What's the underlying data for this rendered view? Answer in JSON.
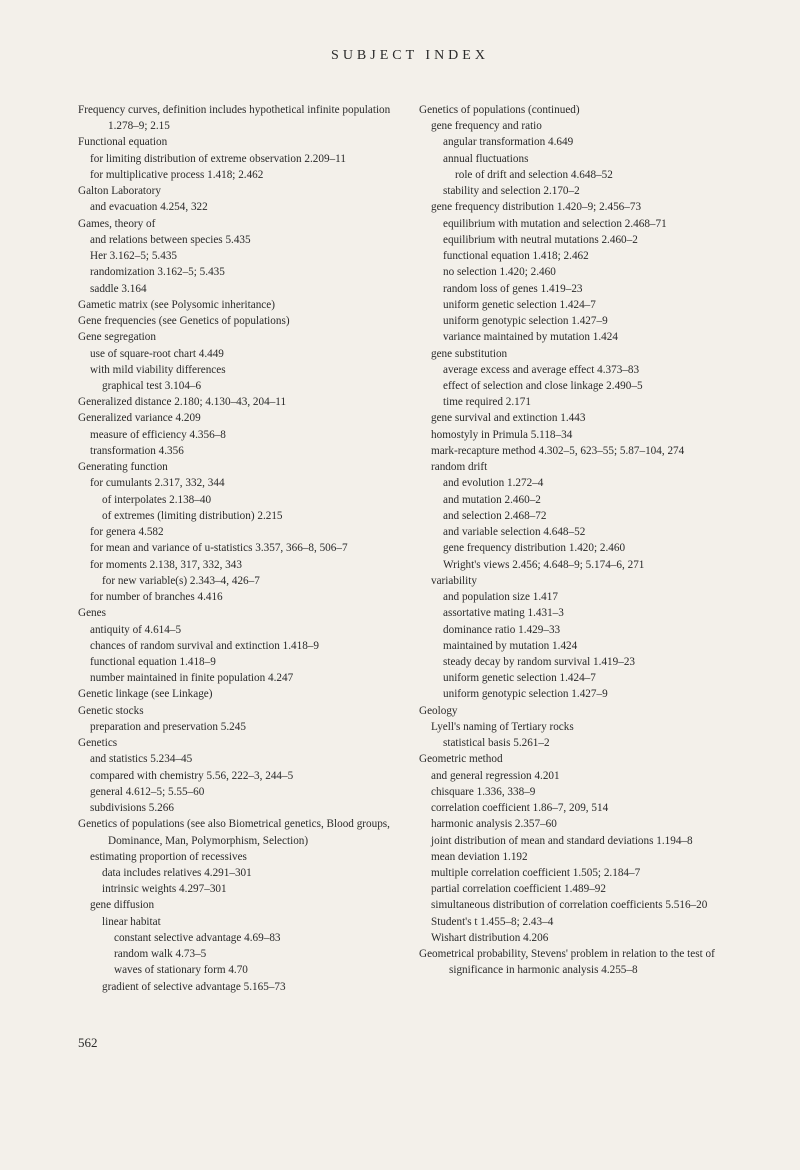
{
  "header": "SUBJECT  INDEX",
  "pageNumber": "562",
  "left": [
    {
      "lvl": 0,
      "t": "Frequency curves, definition includes hypothetical infinite population 1.278–9; 2.15"
    },
    {
      "lvl": 0,
      "t": "Functional equation"
    },
    {
      "lvl": 1,
      "t": "for limiting distribution of extreme observation 2.209–11"
    },
    {
      "lvl": 1,
      "t": "for multiplicative process 1.418; 2.462"
    },
    {
      "lvl": 0,
      "t": " "
    },
    {
      "lvl": 0,
      "t": "Galton Laboratory"
    },
    {
      "lvl": 1,
      "t": "and evacuation 4.254, 322"
    },
    {
      "lvl": 0,
      "t": "Games, theory of"
    },
    {
      "lvl": 1,
      "t": "and relations between species 5.435"
    },
    {
      "lvl": 1,
      "t": "Her 3.162–5; 5.435"
    },
    {
      "lvl": 1,
      "t": "randomization 3.162–5; 5.435"
    },
    {
      "lvl": 1,
      "t": "saddle 3.164"
    },
    {
      "lvl": 0,
      "t": "Gametic matrix (see Polysomic inheritance)"
    },
    {
      "lvl": 0,
      "t": "Gene frequencies (see Genetics of populations)"
    },
    {
      "lvl": 0,
      "t": "Gene segregation"
    },
    {
      "lvl": 1,
      "t": "use of square-root chart 4.449"
    },
    {
      "lvl": 1,
      "t": "with mild viability differences"
    },
    {
      "lvl": 2,
      "t": "graphical test 3.104–6"
    },
    {
      "lvl": 0,
      "t": "Generalized distance 2.180; 4.130–43, 204–11"
    },
    {
      "lvl": 0,
      "t": "Generalized variance 4.209"
    },
    {
      "lvl": 1,
      "t": "measure of efficiency 4.356–8"
    },
    {
      "lvl": 1,
      "t": "transformation 4.356"
    },
    {
      "lvl": 0,
      "t": "Generating function"
    },
    {
      "lvl": 1,
      "t": "for cumulants 2.317, 332, 344"
    },
    {
      "lvl": 2,
      "t": "of interpolates 2.138–40"
    },
    {
      "lvl": 2,
      "t": "of extremes (limiting distribution) 2.215"
    },
    {
      "lvl": 1,
      "t": "for genera 4.582"
    },
    {
      "lvl": 1,
      "t": "for mean and variance of u-statistics 3.357, 366–8, 506–7"
    },
    {
      "lvl": 1,
      "t": "for moments 2.138, 317, 332, 343"
    },
    {
      "lvl": 2,
      "t": "for new variable(s) 2.343–4, 426–7"
    },
    {
      "lvl": 1,
      "t": "for number of branches 4.416"
    },
    {
      "lvl": 0,
      "t": "Genes"
    },
    {
      "lvl": 1,
      "t": "antiquity of 4.614–5"
    },
    {
      "lvl": 1,
      "t": "chances of random survival and extinction 1.418–9"
    },
    {
      "lvl": 1,
      "t": "functional equation 1.418–9"
    },
    {
      "lvl": 1,
      "t": "number maintained in finite population 4.247"
    },
    {
      "lvl": 0,
      "t": "Genetic linkage (see Linkage)"
    },
    {
      "lvl": 0,
      "t": "Genetic stocks"
    },
    {
      "lvl": 1,
      "t": "preparation and preservation 5.245"
    },
    {
      "lvl": 0,
      "t": "Genetics"
    },
    {
      "lvl": 1,
      "t": "and statistics 5.234–45"
    },
    {
      "lvl": 1,
      "t": "compared with chemistry 5.56, 222–3, 244–5"
    },
    {
      "lvl": 1,
      "t": "general 4.612–5; 5.55–60"
    },
    {
      "lvl": 1,
      "t": "subdivisions 5.266"
    },
    {
      "lvl": 0,
      "t": "Genetics of populations (see also Biometrical genetics, Blood groups, Dominance, Man, Polymorphism, Selection)"
    },
    {
      "lvl": 1,
      "t": "estimating proportion of recessives"
    },
    {
      "lvl": 2,
      "t": "data includes relatives 4.291–301"
    },
    {
      "lvl": 2,
      "t": "intrinsic weights 4.297–301"
    },
    {
      "lvl": 1,
      "t": "gene diffusion"
    },
    {
      "lvl": 2,
      "t": "linear habitat"
    },
    {
      "lvl": 3,
      "t": "constant selective advantage 4.69–83"
    },
    {
      "lvl": 3,
      "t": "random walk 4.73–5"
    },
    {
      "lvl": 3,
      "t": "waves of stationary form 4.70"
    },
    {
      "lvl": 2,
      "t": "gradient of selective advantage 5.165–73"
    }
  ],
  "right": [
    {
      "lvl": 0,
      "t": "Genetics of populations (continued)"
    },
    {
      "lvl": 1,
      "t": "gene frequency and ratio"
    },
    {
      "lvl": 2,
      "t": "angular transformation 4.649"
    },
    {
      "lvl": 2,
      "t": "annual fluctuations"
    },
    {
      "lvl": 3,
      "t": "role of drift and selection 4.648–52"
    },
    {
      "lvl": 2,
      "t": "stability and selection 2.170–2"
    },
    {
      "lvl": 1,
      "t": "gene frequency distribution 1.420–9; 2.456–73"
    },
    {
      "lvl": 2,
      "t": "equilibrium with mutation and selection 2.468–71"
    },
    {
      "lvl": 2,
      "t": "equilibrium with neutral mutations 2.460–2"
    },
    {
      "lvl": 2,
      "t": "functional equation 1.418; 2.462"
    },
    {
      "lvl": 2,
      "t": "no selection 1.420; 2.460"
    },
    {
      "lvl": 2,
      "t": "random loss of genes 1.419–23"
    },
    {
      "lvl": 2,
      "t": "uniform genetic selection 1.424–7"
    },
    {
      "lvl": 2,
      "t": "uniform genotypic selection 1.427–9"
    },
    {
      "lvl": 2,
      "t": "variance maintained by mutation 1.424"
    },
    {
      "lvl": 1,
      "t": "gene substitution"
    },
    {
      "lvl": 2,
      "t": "average excess and average effect 4.373–83"
    },
    {
      "lvl": 2,
      "t": "effect of selection and close linkage 2.490–5"
    },
    {
      "lvl": 2,
      "t": "time required 2.171"
    },
    {
      "lvl": 1,
      "t": "gene survival and extinction 1.443"
    },
    {
      "lvl": 1,
      "t": "homostyly in Primula 5.118–34"
    },
    {
      "lvl": 1,
      "t": "mark-recapture method 4.302–5, 623–55; 5.87–104, 274"
    },
    {
      "lvl": 1,
      "t": "random drift"
    },
    {
      "lvl": 2,
      "t": "and evolution 1.272–4"
    },
    {
      "lvl": 2,
      "t": "and mutation 2.460–2"
    },
    {
      "lvl": 2,
      "t": "and selection 2.468–72"
    },
    {
      "lvl": 2,
      "t": "and variable selection 4.648–52"
    },
    {
      "lvl": 2,
      "t": "gene frequency distribution 1.420; 2.460"
    },
    {
      "lvl": 2,
      "t": "Wright's views 2.456; 4.648–9; 5.174–6, 271"
    },
    {
      "lvl": 1,
      "t": "variability"
    },
    {
      "lvl": 2,
      "t": "and population size 1.417"
    },
    {
      "lvl": 2,
      "t": "assortative mating 1.431–3"
    },
    {
      "lvl": 2,
      "t": "dominance ratio 1.429–33"
    },
    {
      "lvl": 2,
      "t": "maintained by mutation 1.424"
    },
    {
      "lvl": 2,
      "t": "steady decay by random survival 1.419–23"
    },
    {
      "lvl": 2,
      "t": "uniform genetic selection 1.424–7"
    },
    {
      "lvl": 2,
      "t": "uniform genotypic selection 1.427–9"
    },
    {
      "lvl": 0,
      "t": "Geology"
    },
    {
      "lvl": 1,
      "t": "Lyell's naming of Tertiary rocks"
    },
    {
      "lvl": 2,
      "t": "statistical basis 5.261–2"
    },
    {
      "lvl": 0,
      "t": "Geometric method"
    },
    {
      "lvl": 1,
      "t": "and general regression 4.201"
    },
    {
      "lvl": 1,
      "t": "chisquare 1.336, 338–9"
    },
    {
      "lvl": 1,
      "t": "correlation coefficient 1.86–7, 209, 514"
    },
    {
      "lvl": 1,
      "t": "harmonic analysis 2.357–60"
    },
    {
      "lvl": 1,
      "t": "joint distribution of mean and standard deviations 1.194–8"
    },
    {
      "lvl": 1,
      "t": "mean deviation 1.192"
    },
    {
      "lvl": 1,
      "t": "multiple correlation coefficient 1.505; 2.184–7"
    },
    {
      "lvl": 1,
      "t": "partial correlation coefficient 1.489–92"
    },
    {
      "lvl": 1,
      "t": "simultaneous distribution of correlation coefficients 5.516–20"
    },
    {
      "lvl": 1,
      "t": "Student's t 1.455–8; 2.43–4"
    },
    {
      "lvl": 1,
      "t": "Wishart distribution 4.206"
    },
    {
      "lvl": 0,
      "t": "Geometrical probability, Stevens' problem in relation to the test of significance in harmonic analysis 4.255–8"
    }
  ]
}
